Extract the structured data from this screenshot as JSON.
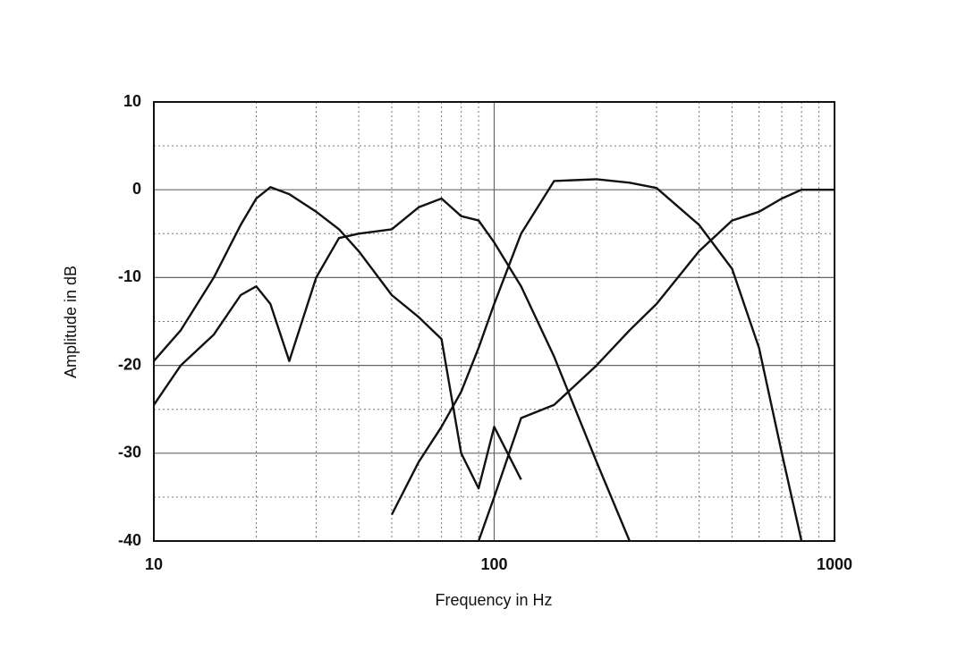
{
  "chart_data": {
    "type": "line",
    "xlabel": "Frequency in Hz",
    "ylabel": "Amplitude in dB",
    "xscale": "log",
    "grid": true,
    "xlim": [
      10,
      1000
    ],
    "xticks": [
      10,
      100,
      1000
    ],
    "ylim": [
      -40,
      10
    ],
    "yticks": [
      -40,
      -30,
      -20,
      -10,
      0,
      10
    ],
    "x": [
      10,
      12,
      15,
      18,
      20,
      22,
      25,
      30,
      35,
      40,
      50,
      60,
      70,
      80,
      90,
      100,
      120,
      150,
      200,
      250,
      300,
      400,
      500,
      600,
      700,
      800,
      900,
      1000
    ],
    "series": [
      {
        "color": "#111111",
        "values": [
          -19.5,
          -16,
          -10,
          -4,
          -1,
          0.3,
          -0.5,
          -2.5,
          -4.5,
          -7,
          -12,
          -14.5,
          -17,
          -30,
          -34,
          -27,
          -33,
          null,
          null,
          null,
          null,
          null,
          null,
          null,
          null,
          null,
          null,
          null
        ]
      },
      {
        "color": "#111111",
        "values": [
          -24.5,
          -20,
          -16.5,
          -12,
          -11,
          -13,
          -19.5,
          -10,
          -5.5,
          -5,
          -4.5,
          -2,
          -1,
          -3,
          -3.5,
          -6,
          -11,
          -19,
          -31,
          -40,
          null,
          null,
          null,
          null,
          null,
          null,
          null,
          null
        ]
      },
      {
        "color": "#111111",
        "values": [
          null,
          null,
          null,
          null,
          null,
          null,
          null,
          null,
          null,
          null,
          -37,
          -31,
          -27,
          -23,
          -18,
          -13,
          -5,
          1,
          1.2,
          0.8,
          0.2,
          -4,
          -9,
          -18,
          -30,
          -40,
          null,
          null
        ]
      },
      {
        "color": "#111111",
        "values": [
          null,
          null,
          null,
          null,
          null,
          null,
          null,
          null,
          null,
          null,
          null,
          null,
          null,
          null,
          -40,
          -35,
          -26,
          -24.5,
          -20,
          -16,
          -13,
          -7,
          -3.5,
          -2.5,
          -1,
          0,
          0,
          0
        ]
      }
    ]
  }
}
